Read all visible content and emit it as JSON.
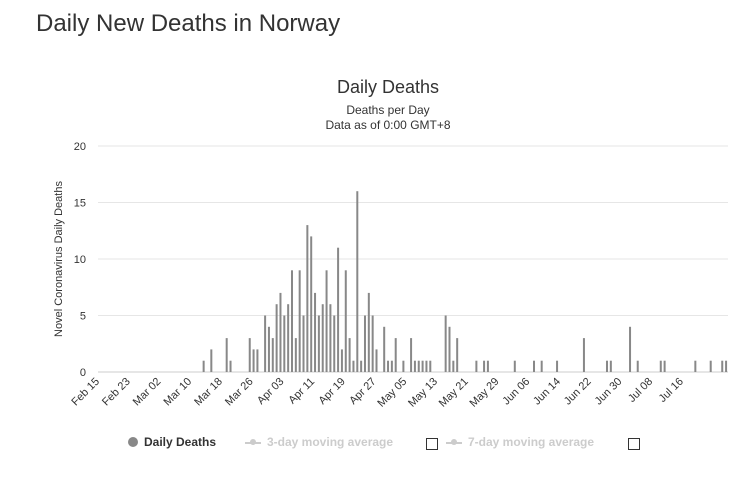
{
  "page": {
    "title": "Daily New Deaths in Norway"
  },
  "legend": {
    "items": [
      {
        "label": "Daily Deaths",
        "active": true
      },
      {
        "label": "3-day moving average",
        "active": false
      },
      {
        "label": "7-day moving average",
        "active": false
      }
    ]
  },
  "colors": {
    "bar": "#888888",
    "grid": "#e6e6e6",
    "text": "#333333",
    "inactive": "#cccccc"
  },
  "chart_data": {
    "type": "bar",
    "title": "Daily Deaths",
    "subtitle_lines": [
      "Deaths per Day",
      "Data as of 0:00 GMT+8"
    ],
    "ylabel": "Novel Coronavirus Daily Deaths",
    "xlabel": "",
    "ylim": [
      0,
      20
    ],
    "yticks": [
      0,
      5,
      10,
      15,
      20
    ],
    "grid": true,
    "start_date": "Feb 15",
    "xtick_labels": [
      "Feb 15",
      "Feb 23",
      "Mar 02",
      "Mar 10",
      "Mar 18",
      "Mar 26",
      "Apr 03",
      "Apr 11",
      "Apr 19",
      "Apr 27",
      "May 05",
      "May 13",
      "May 21",
      "May 29",
      "Jun 06",
      "Jun 14",
      "Jun 22",
      "Jun 30",
      "Jul 08",
      "Jul 16"
    ],
    "values": [
      0,
      0,
      0,
      0,
      0,
      0,
      0,
      0,
      0,
      0,
      0,
      0,
      0,
      0,
      0,
      0,
      0,
      0,
      0,
      0,
      0,
      0,
      0,
      0,
      0,
      0,
      0,
      1,
      0,
      2,
      0,
      0,
      0,
      3,
      1,
      0,
      0,
      0,
      0,
      3,
      2,
      2,
      0,
      5,
      4,
      3,
      6,
      7,
      5,
      6,
      9,
      3,
      9,
      5,
      13,
      12,
      7,
      5,
      6,
      9,
      6,
      5,
      11,
      2,
      9,
      3,
      1,
      16,
      1,
      5,
      7,
      5,
      2,
      0,
      4,
      1,
      1,
      3,
      0,
      1,
      0,
      3,
      1,
      1,
      1,
      1,
      1,
      0,
      0,
      0,
      5,
      4,
      1,
      3,
      0,
      0,
      0,
      0,
      1,
      0,
      1,
      1,
      0,
      0,
      0,
      0,
      0,
      0,
      1,
      0,
      0,
      0,
      0,
      1,
      0,
      1,
      0,
      0,
      0,
      1,
      0,
      0,
      0,
      0,
      0,
      0,
      3,
      0,
      0,
      0,
      0,
      0,
      1,
      1,
      0,
      0,
      0,
      0,
      4,
      0,
      1,
      0,
      0,
      0,
      0,
      0,
      1,
      1,
      0,
      0,
      0,
      0,
      0,
      0,
      0,
      1,
      0,
      0,
      0,
      1,
      0,
      0,
      1,
      1
    ]
  }
}
